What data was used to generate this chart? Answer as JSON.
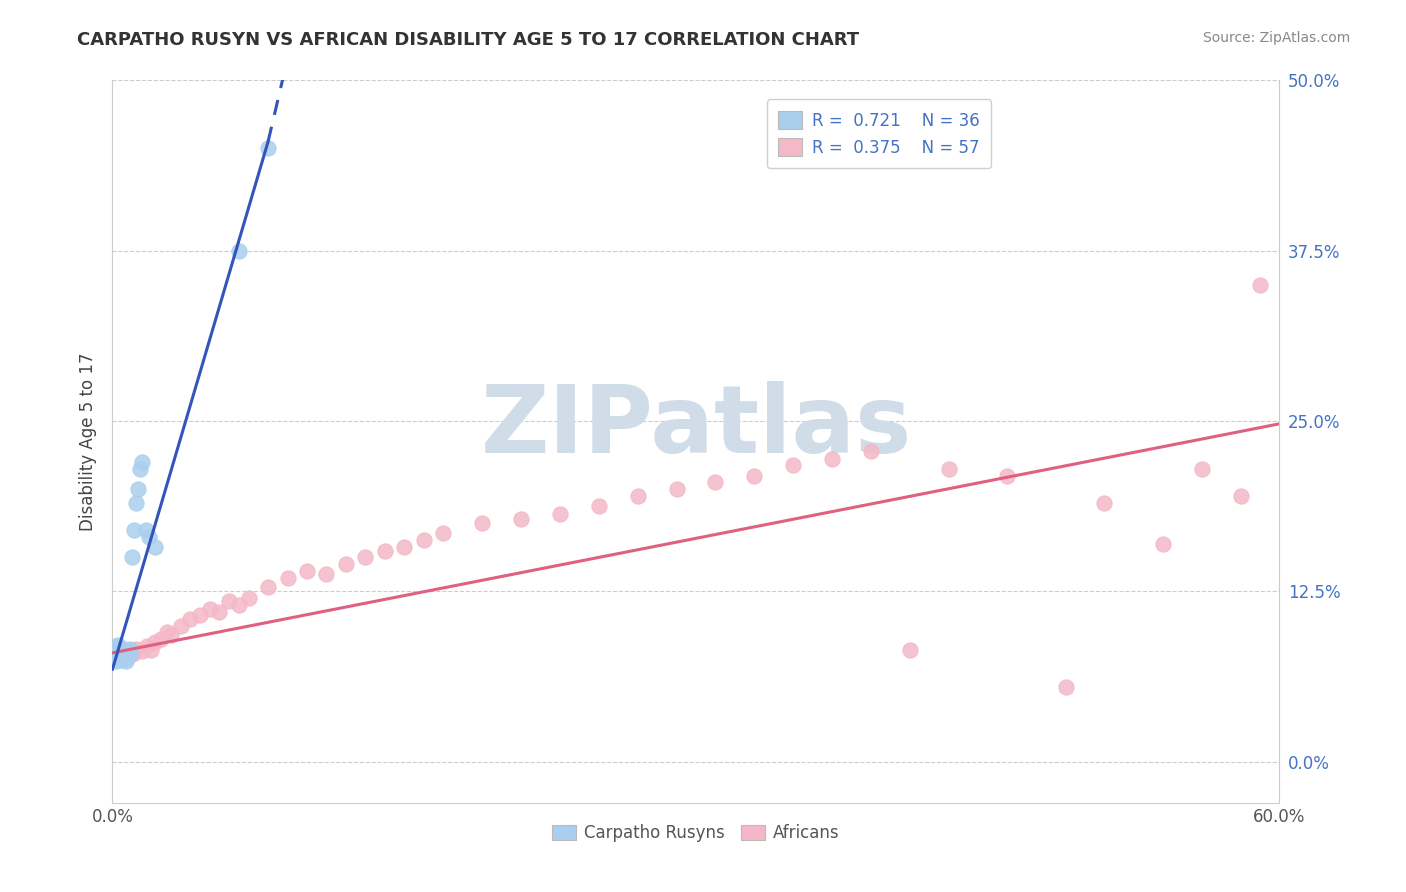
{
  "title": "CARPATHO RUSYN VS AFRICAN DISABILITY AGE 5 TO 17 CORRELATION CHART",
  "source": "Source: ZipAtlas.com",
  "ylabel": "Disability Age 5 to 17",
  "color_blue": "#AACFEE",
  "color_pink": "#F4B8C8",
  "line_color_blue": "#3355BB",
  "line_color_pink": "#E06080",
  "legend_R1": "0.721",
  "legend_N1": "36",
  "legend_R2": "0.375",
  "legend_N2": "57",
  "legend_label1": "Carpatho Rusyns",
  "legend_label2": "Africans",
  "xlim": [
    0.0,
    0.6
  ],
  "ylim": [
    -0.03,
    0.5
  ],
  "ytick_vals": [
    0.0,
    0.125,
    0.25,
    0.375,
    0.5
  ],
  "ytick_labels": [
    "0.0%",
    "12.5%",
    "25.0%",
    "37.5%",
    "50.0%"
  ],
  "xtick_vals": [
    0.0,
    0.6
  ],
  "xtick_labels": [
    "0.0%",
    "60.0%"
  ],
  "cr_x": [
    0.001,
    0.001,
    0.001,
    0.002,
    0.002,
    0.002,
    0.002,
    0.003,
    0.003,
    0.003,
    0.004,
    0.004,
    0.004,
    0.005,
    0.005,
    0.005,
    0.006,
    0.006,
    0.007,
    0.007,
    0.007,
    0.008,
    0.008,
    0.009,
    0.009,
    0.01,
    0.011,
    0.012,
    0.013,
    0.014,
    0.015,
    0.017,
    0.019,
    0.022,
    0.065,
    0.08
  ],
  "cr_y": [
    0.08,
    0.082,
    0.076,
    0.083,
    0.085,
    0.079,
    0.074,
    0.081,
    0.086,
    0.078,
    0.08,
    0.083,
    0.077,
    0.082,
    0.079,
    0.075,
    0.083,
    0.08,
    0.082,
    0.078,
    0.074,
    0.08,
    0.077,
    0.083,
    0.079,
    0.15,
    0.17,
    0.19,
    0.2,
    0.215,
    0.22,
    0.17,
    0.165,
    0.158,
    0.375,
    0.45
  ],
  "af_x": [
    0.001,
    0.002,
    0.003,
    0.004,
    0.005,
    0.006,
    0.007,
    0.008,
    0.009,
    0.01,
    0.011,
    0.012,
    0.015,
    0.018,
    0.02,
    0.022,
    0.025,
    0.028,
    0.03,
    0.035,
    0.04,
    0.045,
    0.05,
    0.055,
    0.06,
    0.065,
    0.07,
    0.08,
    0.09,
    0.1,
    0.11,
    0.12,
    0.13,
    0.14,
    0.15,
    0.16,
    0.17,
    0.19,
    0.21,
    0.23,
    0.25,
    0.27,
    0.29,
    0.31,
    0.33,
    0.35,
    0.37,
    0.39,
    0.41,
    0.43,
    0.46,
    0.49,
    0.51,
    0.54,
    0.56,
    0.58,
    0.59
  ],
  "af_y": [
    0.082,
    0.08,
    0.078,
    0.082,
    0.08,
    0.079,
    0.081,
    0.08,
    0.082,
    0.079,
    0.08,
    0.083,
    0.081,
    0.085,
    0.082,
    0.088,
    0.09,
    0.095,
    0.093,
    0.1,
    0.105,
    0.108,
    0.112,
    0.11,
    0.118,
    0.115,
    0.12,
    0.128,
    0.135,
    0.14,
    0.138,
    0.145,
    0.15,
    0.155,
    0.158,
    0.163,
    0.168,
    0.175,
    0.178,
    0.182,
    0.188,
    0.195,
    0.2,
    0.205,
    0.21,
    0.218,
    0.222,
    0.228,
    0.082,
    0.215,
    0.21,
    0.055,
    0.19,
    0.16,
    0.215,
    0.195,
    0.35
  ],
  "watermark_text": "ZIPatlas",
  "watermark_color": "#d0dde8",
  "background_color": "#ffffff"
}
